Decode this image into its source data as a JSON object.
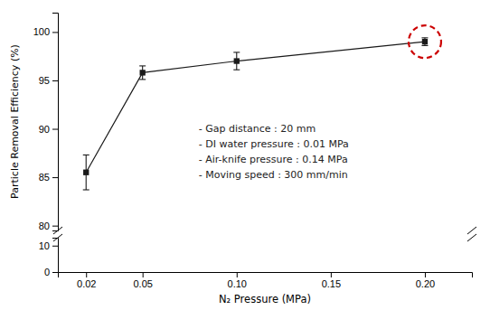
{
  "chart_data": [
    {
      "type": "line",
      "ylabel": "Particle Removal Efficiency (%)",
      "x": [
        0.02,
        0.05,
        0.1,
        0.2
      ],
      "series": [
        {
          "values": [
            85.5,
            95.8,
            97.0,
            99.0
          ],
          "errors": [
            1.8,
            0.7,
            0.9,
            0.4
          ],
          "color": "#1a1a1a",
          "marker": "square",
          "line_style": "solid"
        }
      ],
      "xlim": [
        0.005,
        0.225
      ],
      "ylim": [
        79.5,
        102
      ],
      "yticks": [
        80,
        85,
        90,
        95,
        100
      ],
      "tick_labels": "y",
      "annotations": [
        "- Gap distance : 20 mm",
        "- DI water pressure : 0.01 MPa",
        "- Air-knife pressure : 0.14 MPa",
        "- Moving speed : 300 mm/min"
      ],
      "circle": {
        "x": 0.2,
        "y": 99.0,
        "color": "#cc0000",
        "line_style": "dashed"
      }
    },
    {
      "type": "line",
      "xlabel": "N₂ Pressure (MPa)",
      "xlim": [
        0.005,
        0.225
      ],
      "xticks": [
        0.02,
        0.05,
        {
          "value": 0.1,
          "label": "0.10"
        },
        0.15,
        {
          "value": 0.2,
          "label": "0.20"
        }
      ],
      "ylim": [
        0,
        13
      ],
      "yticks": [
        0,
        10
      ]
    }
  ]
}
